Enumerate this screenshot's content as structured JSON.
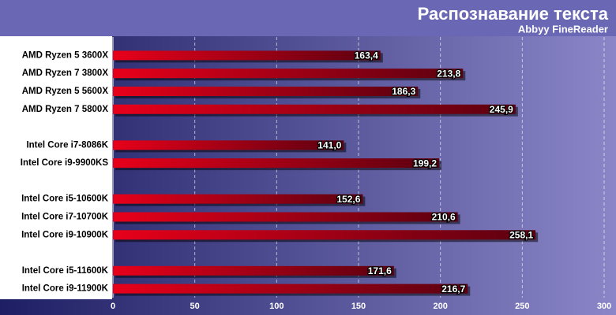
{
  "chart_data": {
    "type": "bar",
    "orientation": "horizontal",
    "title": "Распознавание текста",
    "subtitle": "Abbyy FineReader",
    "categories": [
      "AMD Ryzen 5 3600X",
      "AMD Ryzen 7 3800X",
      "AMD Ryzen 5 5600X",
      "AMD Ryzen 7 5800X",
      null,
      "Intel Core i7-8086K",
      "Intel Core i9-9900KS",
      null,
      "Intel Core i5-10600K",
      "Intel Core i7-10700K",
      "Intel Core i9-10900K",
      null,
      "Intel Core i5-11600K",
      "Intel Core i9-11900K"
    ],
    "values": [
      163.4,
      213.8,
      186.3,
      245.9,
      null,
      141.0,
      199.2,
      null,
      152.6,
      210.6,
      258.1,
      null,
      171.6,
      216.7
    ],
    "value_labels": [
      "163,4",
      "213,8",
      "186,3",
      "245,9",
      null,
      "141,0",
      "199,2",
      null,
      "152,6",
      "210,6",
      "258,1",
      null,
      "171,6",
      "216,7"
    ],
    "color": "#e8001a",
    "xlim": [
      0,
      300
    ],
    "xticks": [
      0,
      50,
      100,
      150,
      200,
      250,
      300
    ],
    "grid": true
  }
}
